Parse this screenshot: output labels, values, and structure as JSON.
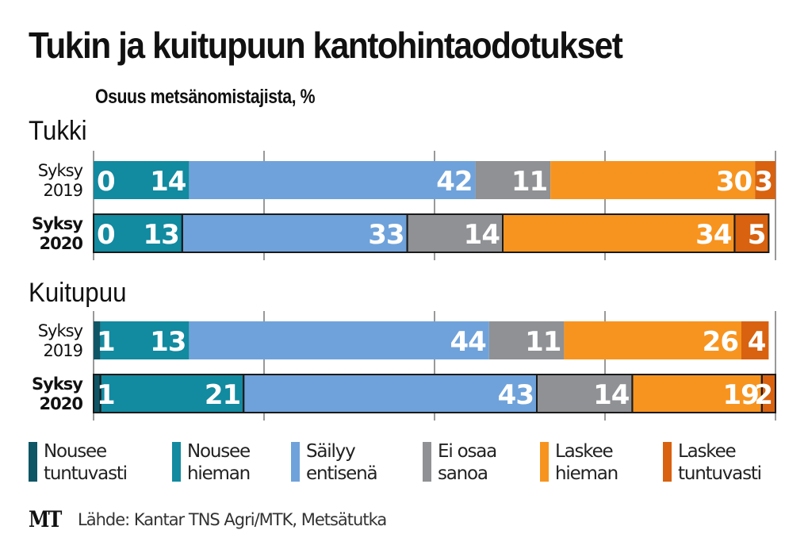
{
  "title": "Tukin ja kuitupuun kantohintaodotukset",
  "subtitle": "Osuus metsänomistajista, %",
  "footer": {
    "logo": "MT",
    "source": "Lähde: Kantar TNS Agri/MTK, Metsätutka"
  },
  "colors": {
    "nousee_tuntuvasti": "#0e5565",
    "nousee_hieman": "#128aa0",
    "sailyy_entisena": "#6fa2da",
    "ei_osaa_sanoa": "#8f9194",
    "laskee_hieman": "#f7941f",
    "laskee_tuntuvasti": "#d8620f"
  },
  "legend": [
    {
      "line1": "Nousee",
      "line2": "tuntuvasti",
      "color": "#0e5565"
    },
    {
      "line1": "Nousee",
      "line2": "hieman",
      "color": "#128aa0"
    },
    {
      "line1": "Säilyy",
      "line2": "entisenä",
      "color": "#6fa2da"
    },
    {
      "line1": "Ei osaa",
      "line2": "sanoa",
      "color": "#8f9194"
    },
    {
      "line1": "Laskee",
      "line2": "hieman",
      "color": "#f7941f"
    },
    {
      "line1": "Laskee",
      "line2": "tuntuvasti",
      "color": "#d8620f"
    }
  ],
  "chart_data": {
    "type": "bar",
    "orientation": "horizontal",
    "stacked": true,
    "title": "Tukin ja kuitupuun kantohintaodotukset",
    "subtitle": "Osuus metsänomistajista, %",
    "xlim": [
      0,
      100
    ],
    "grid": true,
    "gridlines_at": [
      0,
      25,
      50,
      75,
      100
    ],
    "legend_position": "bottom",
    "series_names": [
      "Nousee tuntuvasti",
      "Nousee hieman",
      "Säilyy entisenä",
      "Ei osaa sanoa",
      "Laskee hieman",
      "Laskee tuntuvasti"
    ],
    "groups": [
      {
        "name": "Tukki",
        "rows": [
          {
            "label1": "Syksy",
            "label2": "2019",
            "bold": false,
            "outlined": false,
            "values": [
              0,
              14,
              42,
              11,
              30,
              3
            ]
          },
          {
            "label1": "Syksy",
            "label2": "2020",
            "bold": true,
            "outlined": true,
            "values": [
              0,
              13,
              33,
              14,
              34,
              5
            ]
          }
        ]
      },
      {
        "name": "Kuitupuu",
        "rows": [
          {
            "label1": "Syksy",
            "label2": "2019",
            "bold": false,
            "outlined": false,
            "values": [
              1,
              13,
              44,
              11,
              26,
              4
            ]
          },
          {
            "label1": "Syksy",
            "label2": "2020",
            "bold": true,
            "outlined": true,
            "values": [
              1,
              21,
              43,
              14,
              19,
              2
            ]
          }
        ]
      }
    ]
  }
}
